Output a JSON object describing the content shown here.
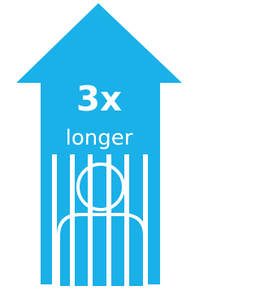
{
  "headline": "3x",
  "subtitle": "longer"
}
